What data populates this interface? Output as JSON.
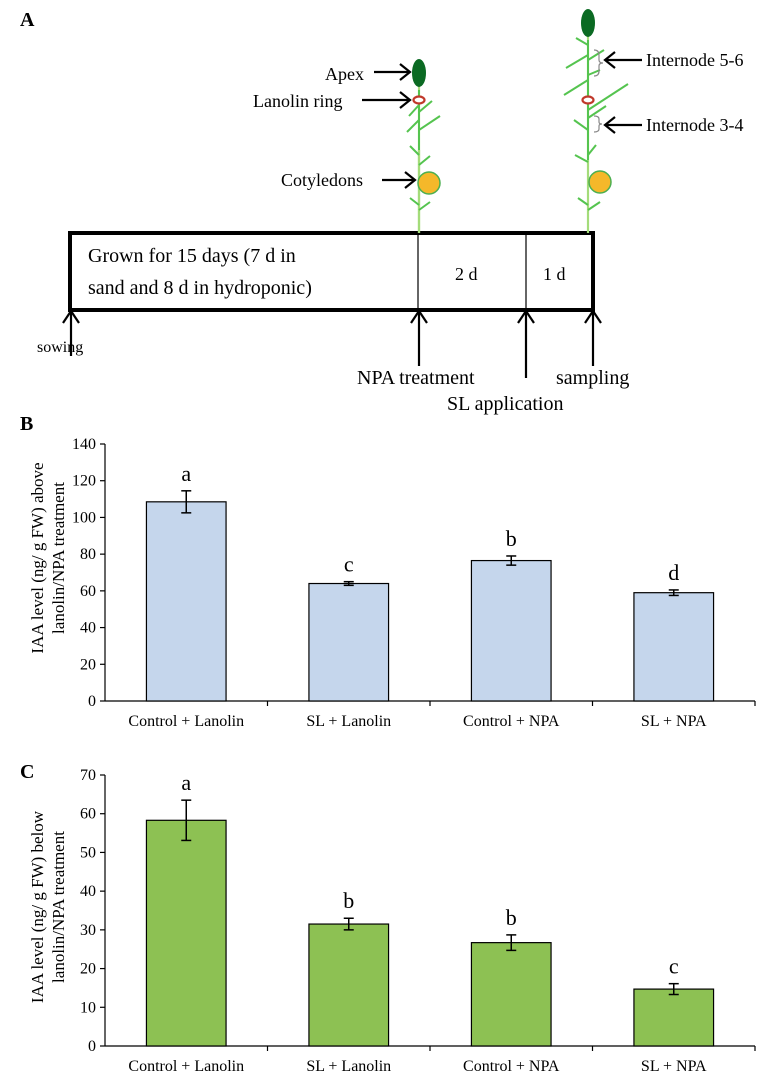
{
  "panel_a": {
    "panel_label": "A",
    "timeline_text_line1": "Grown for 15 days (7 d in",
    "timeline_text_line2": "sand and 8 d in hydroponic)",
    "segment_2": "2 d",
    "segment_3": "1 d",
    "sowing": "sowing",
    "npa": "NPA treatment",
    "sl": "SL application",
    "sampling": "sampling",
    "apex": "Apex",
    "lanolin_ring": "Lanolin ring",
    "cotyledons": "Cotyledons",
    "internode_56": "Internode 5-6",
    "internode_34": "Internode 3-4",
    "colors": {
      "stem": "#55c44f",
      "apex": "#0b6a23",
      "cotyledon": "#f5b82a",
      "ring": "#c0392b"
    }
  },
  "chart_data": [
    {
      "panel_label": "B",
      "type": "bar",
      "categories": [
        "Control + Lanolin",
        "SL + Lanolin",
        "Control + NPA",
        "SL + NPA"
      ],
      "values": [
        108.5,
        64,
        76.5,
        59
      ],
      "errors": [
        6,
        1,
        2.5,
        1.5
      ],
      "significance": [
        "a",
        "c",
        "b",
        "d"
      ],
      "ylabel_line1": "IAA level (ng/ g FW) above",
      "ylabel_line2": "lanolin/NPA treatment",
      "ylim": [
        0,
        140
      ],
      "yticks": [
        "0",
        "20",
        "40",
        "60",
        "80",
        "100",
        "120",
        "140"
      ],
      "bar_color": "#c5d6ec",
      "grid": false
    },
    {
      "panel_label": "C",
      "type": "bar",
      "categories": [
        "Control + Lanolin",
        "SL + Lanolin",
        "Control + NPA",
        "SL + NPA"
      ],
      "values": [
        58.3,
        31.5,
        26.7,
        14.7
      ],
      "errors": [
        5.2,
        1.5,
        2,
        1.4
      ],
      "significance": [
        "a",
        "b",
        "b",
        "c"
      ],
      "ylabel_line1": "IAA level (ng/ g FW) below",
      "ylabel_line2": "lanolin/NPA treatment",
      "ylim": [
        0,
        70
      ],
      "yticks": [
        "0",
        "10",
        "20",
        "30",
        "40",
        "50",
        "60",
        "70"
      ],
      "bar_color": "#8dc153",
      "grid": false
    }
  ]
}
